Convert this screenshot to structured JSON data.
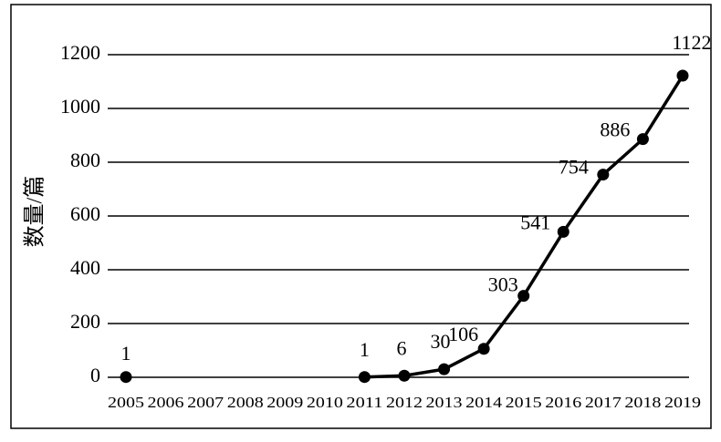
{
  "chart_data": {
    "type": "line",
    "y_label": "数量/篇",
    "categories": [
      "2005",
      "2006",
      "2007",
      "2008",
      "2009",
      "2010",
      "2011",
      "2012",
      "2013",
      "2014",
      "2015",
      "2016",
      "2017",
      "2018",
      "2019"
    ],
    "values": [
      1,
      null,
      null,
      null,
      null,
      null,
      1,
      6,
      30,
      106,
      303,
      541,
      754,
      886,
      1122
    ],
    "color": "#000000",
    "data_labels": true,
    "ylim": [
      0,
      1200
    ],
    "yticks": [
      0,
      200,
      400,
      600,
      800,
      1000,
      1200
    ],
    "grid": true
  }
}
